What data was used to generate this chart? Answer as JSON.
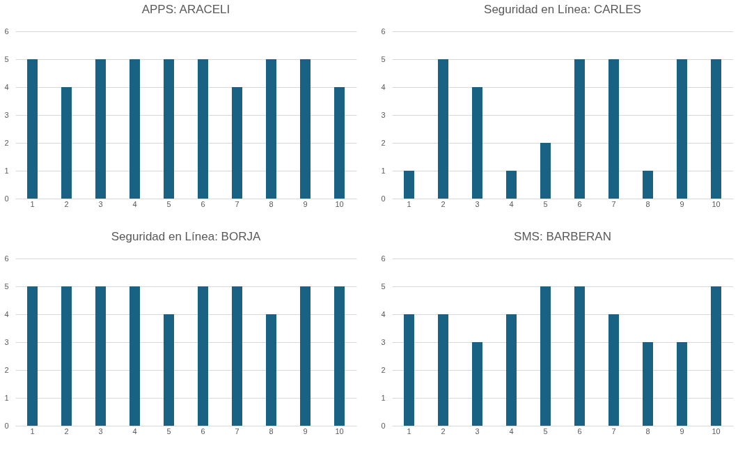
{
  "chart_data": [
    {
      "type": "bar",
      "title": "APPS: ARACELI",
      "categories": [
        "1",
        "2",
        "3",
        "4",
        "5",
        "6",
        "7",
        "8",
        "9",
        "10"
      ],
      "values": [
        5,
        4,
        5,
        5,
        5,
        5,
        4,
        5,
        5,
        4
      ],
      "color": "#1a6283",
      "ylim": [
        0,
        6
      ],
      "yticks": [
        0,
        1,
        2,
        3,
        4,
        5,
        6
      ],
      "grid": "y"
    },
    {
      "type": "bar",
      "title": "Seguridad en Línea: CARLES",
      "categories": [
        "1",
        "2",
        "3",
        "4",
        "5",
        "6",
        "7",
        "8",
        "9",
        "10"
      ],
      "values": [
        1,
        5,
        4,
        1,
        2,
        5,
        5,
        1,
        5,
        5
      ],
      "color": "#1a6283",
      "ylim": [
        0,
        6
      ],
      "yticks": [
        0,
        1,
        2,
        3,
        4,
        5,
        6
      ],
      "grid": "y"
    },
    {
      "type": "bar",
      "title": "Seguridad en Línea: BORJA",
      "categories": [
        "1",
        "2",
        "3",
        "4",
        "5",
        "6",
        "7",
        "8",
        "9",
        "10"
      ],
      "values": [
        5,
        5,
        5,
        5,
        4,
        5,
        5,
        4,
        5,
        5
      ],
      "color": "#1a6283",
      "ylim": [
        0,
        6
      ],
      "yticks": [
        0,
        1,
        2,
        3,
        4,
        5,
        6
      ],
      "grid": "y"
    },
    {
      "type": "bar",
      "title": "SMS: BARBERAN",
      "categories": [
        "1",
        "2",
        "3",
        "4",
        "5",
        "6",
        "7",
        "8",
        "9",
        "10"
      ],
      "values": [
        4,
        4,
        3,
        4,
        5,
        5,
        4,
        3,
        3,
        5
      ],
      "color": "#1a6283",
      "ylim": [
        0,
        6
      ],
      "yticks": [
        0,
        1,
        2,
        3,
        4,
        5,
        6
      ],
      "grid": "y"
    }
  ]
}
